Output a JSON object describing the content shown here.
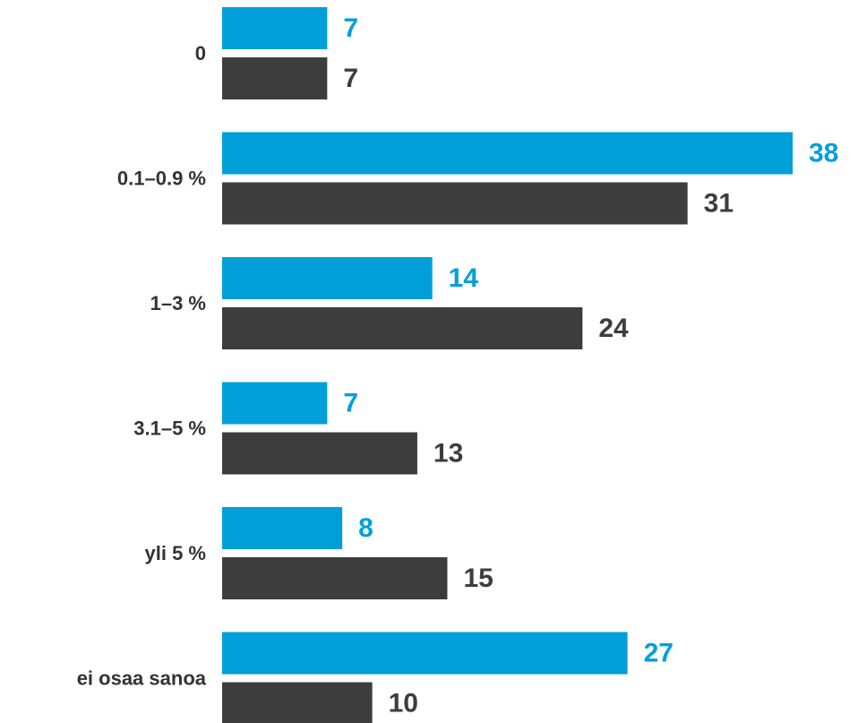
{
  "chart_data": {
    "type": "bar",
    "orientation": "horizontal",
    "categories": [
      "0",
      "0.1–0.9 %",
      "1–3 %",
      "3.1–5 %",
      "yli 5 %",
      "ei osaa sanoa"
    ],
    "series": [
      {
        "values": [
          7,
          38,
          14,
          7,
          8,
          27
        ],
        "color": "#009FDA"
      },
      {
        "values": [
          7,
          31,
          24,
          13,
          15,
          10
        ],
        "color": "#3D3D3D"
      }
    ],
    "xlim": [
      0,
      38
    ],
    "grid": false,
    "legend": "none",
    "data_labels": true
  }
}
